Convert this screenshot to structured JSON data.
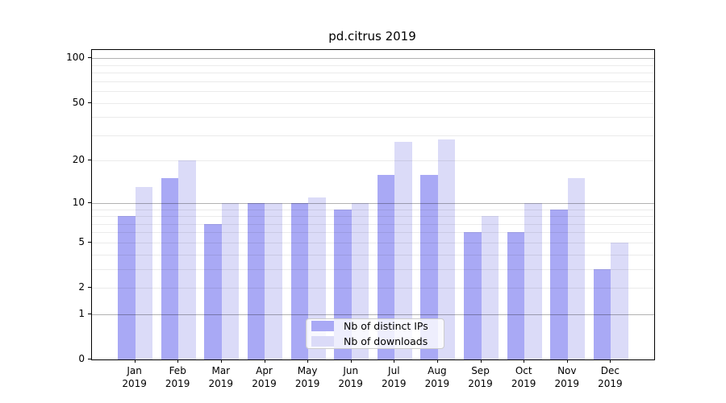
{
  "title": "pd.citrus 2019",
  "chart_data": {
    "type": "bar",
    "title": "pd.citrus 2019",
    "categories": [
      "Jan",
      "Feb",
      "Mar",
      "Apr",
      "May",
      "Jun",
      "Jul",
      "Aug",
      "Sep",
      "Oct",
      "Nov",
      "Dec"
    ],
    "category_sublabel": "2019",
    "series": [
      {
        "name": "Nb of distinct IPs",
        "key": "distinct-ips",
        "color": "#a9a9f5",
        "values": [
          8,
          15,
          7,
          10,
          10,
          9,
          16,
          16,
          6,
          6,
          9,
          3
        ]
      },
      {
        "name": "Nb of downloads",
        "key": "downloads",
        "color": "#dbdbf8",
        "values": [
          13,
          20,
          10,
          10,
          11,
          10,
          27,
          28,
          8,
          10,
          15,
          5
        ]
      }
    ],
    "xlabel": "",
    "ylabel": "",
    "y_scale": "log1p",
    "ylim": [
      0,
      113.6
    ],
    "y_ticks": [
      0,
      1,
      2,
      5,
      10,
      20,
      50,
      100
    ],
    "y_major_gridlines": [
      1,
      10,
      100
    ],
    "y_minor_gridlines": [
      2,
      3,
      4,
      5,
      6,
      7,
      8,
      9,
      20,
      30,
      40,
      50,
      60,
      70,
      80,
      90
    ],
    "grid": true,
    "legend_position": "lower center"
  },
  "legend": {
    "items": [
      {
        "label": "Nb of distinct IPs",
        "color": "#a9a9f5"
      },
      {
        "label": "Nb of downloads",
        "color": "#dbdbf8"
      }
    ]
  },
  "colors": {
    "background": "#ffffff",
    "bar_distinct_ips": "#a9a9f5",
    "bar_downloads": "#dbdbf8",
    "major_gridline": "#b3b3b3",
    "minor_gridline": "#ebebeb",
    "axis_frame": "#000000",
    "text": "#000000"
  }
}
